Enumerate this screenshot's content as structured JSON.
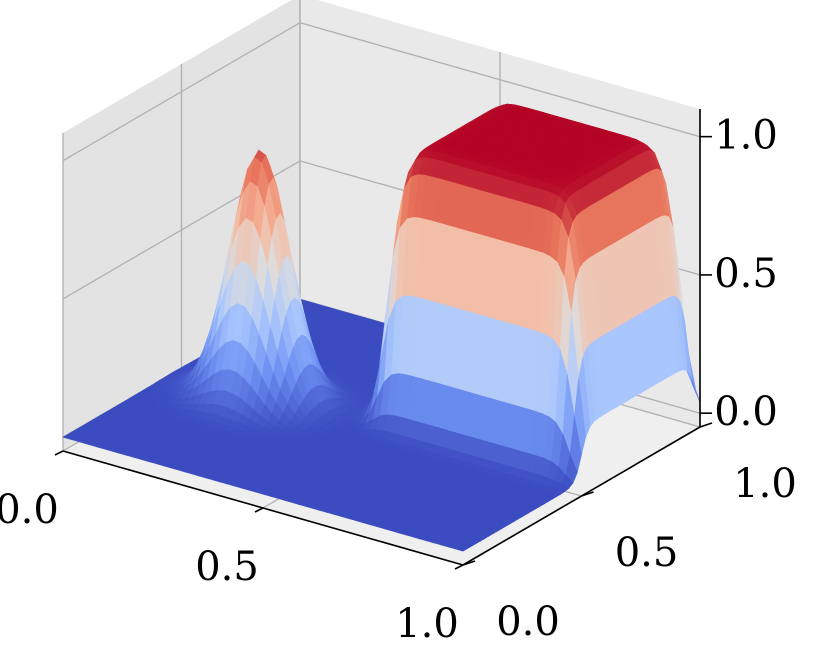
{
  "chart_data": {
    "type": "surface3d",
    "title": "",
    "xlabel": "",
    "ylabel": "",
    "zlabel": "",
    "colormap": "coolwarm",
    "colormap_stops": [
      "#3b4cc0",
      "#6f92f3",
      "#aac7fd",
      "#dddddd",
      "#f7b89c",
      "#e7745b",
      "#b40426"
    ],
    "pane_colors": {
      "back": "#e9e9e9",
      "left": "#e3e3e3",
      "floor": "#efefef"
    },
    "xlim": [
      0,
      1
    ],
    "ylim": [
      0,
      1
    ],
    "zlim": [
      -0.05,
      1.1
    ],
    "x_ticks": [
      {
        "value": 0.0,
        "label": "0.0"
      },
      {
        "value": 0.5,
        "label": "0.5"
      },
      {
        "value": 1.0,
        "label": "1.0"
      }
    ],
    "y_ticks": [
      {
        "value": 0.0,
        "label": "0.0"
      },
      {
        "value": 0.5,
        "label": "0.5"
      },
      {
        "value": 1.0,
        "label": "1.0"
      }
    ],
    "z_ticks": [
      {
        "value": 0.0,
        "label": "0.0"
      },
      {
        "value": 0.5,
        "label": "0.5"
      },
      {
        "value": 1.0,
        "label": "1.0"
      }
    ],
    "surface_features": [
      {
        "shape": "bump",
        "center_x": 0.22,
        "center_y": 0.46,
        "radius": 0.17,
        "peak": 0.9
      },
      {
        "shape": "plateau",
        "x_range": [
          0.5,
          1.0
        ],
        "y_range": [
          0.5,
          1.0
        ],
        "height": 1.0
      }
    ],
    "grid": true
  }
}
